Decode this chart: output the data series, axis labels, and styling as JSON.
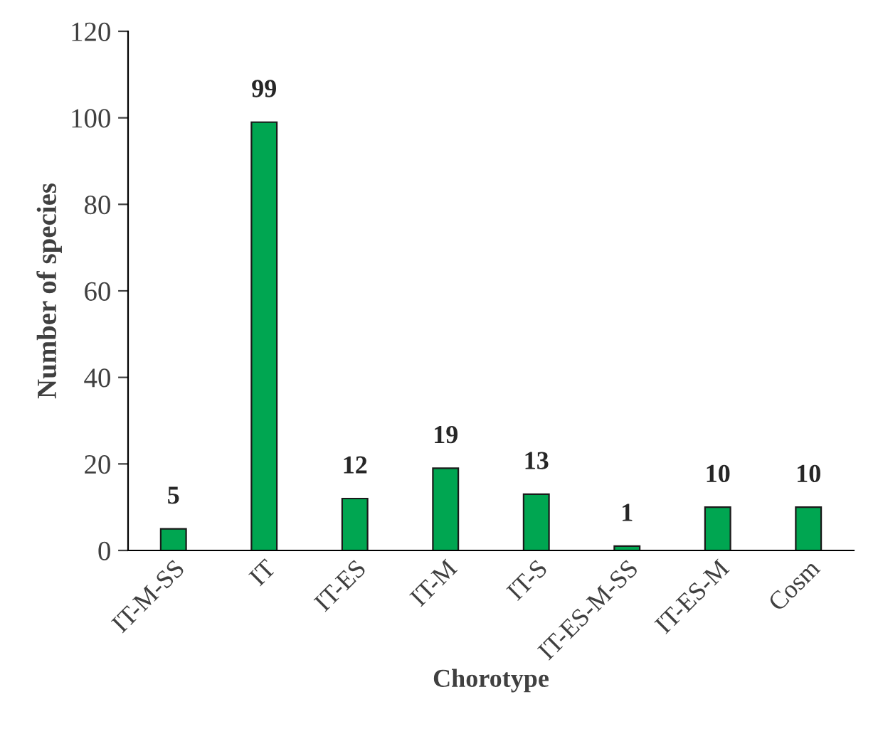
{
  "chart_data": {
    "type": "bar",
    "xlabel": "Chorotype",
    "ylabel": "Number of species",
    "categories": [
      "IT-M-SS",
      "IT",
      "IT-ES",
      "IT-M",
      "IT-S",
      "IT-ES-M-SS",
      "IT-ES-M",
      "Cosm"
    ],
    "values": [
      5,
      99,
      12,
      19,
      13,
      1,
      10,
      10
    ],
    "color": "#00a651",
    "ylim": [
      0,
      120
    ],
    "yticks": [
      0,
      20,
      40,
      60,
      80,
      100,
      120
    ],
    "data_labels": true
  }
}
